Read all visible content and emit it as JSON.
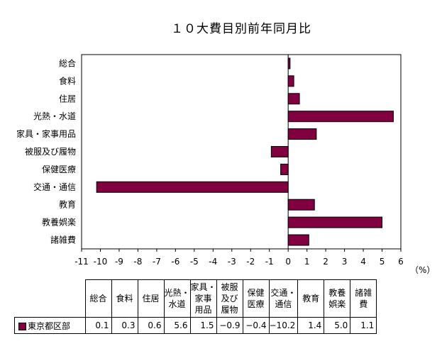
{
  "chart_data": {
    "type": "bar",
    "orientation": "horizontal",
    "title": "１０大費目別前年同月比",
    "unit": "（%）",
    "categories": [
      "総合",
      "食料",
      "住居",
      "光熱・水道",
      "家具・家事用品",
      "被服及び履物",
      "保健医療",
      "交通・通信",
      "教育",
      "教養娯楽",
      "諸雑費"
    ],
    "series": [
      {
        "name": "東京都区部",
        "values": [
          0.1,
          0.3,
          0.6,
          5.6,
          1.5,
          -0.9,
          -0.4,
          -10.2,
          1.4,
          5.0,
          1.1
        ]
      }
    ],
    "xlim": [
      -11,
      6
    ],
    "ticks": [
      "-11",
      "-10",
      "-9",
      "-8",
      "-7",
      "-6",
      "-5",
      "-4",
      "-3",
      "-2",
      "-1",
      "0",
      "1",
      "2",
      "3",
      "4",
      "5",
      "6"
    ],
    "grid": false,
    "bar_color": "#800040"
  },
  "table": {
    "headers": [
      [
        "総合"
      ],
      [
        "食料"
      ],
      [
        "住居"
      ],
      [
        "光熱・",
        "水道"
      ],
      [
        "家具・",
        "家事",
        "用品"
      ],
      [
        "被服",
        "及び",
        "履物"
      ],
      [
        "保健",
        "医療"
      ],
      [
        "交通・",
        "通信"
      ],
      [
        "教育"
      ],
      [
        "教養",
        "娯楽"
      ],
      [
        "諸雑",
        "費"
      ]
    ],
    "series_label": "東京都区部",
    "values": [
      "0.1",
      "0.3",
      "0.6",
      "5.6",
      "1.5",
      "−0.9",
      "−0.4",
      "−10.2",
      "1.4",
      "5.0",
      "1.1"
    ]
  }
}
